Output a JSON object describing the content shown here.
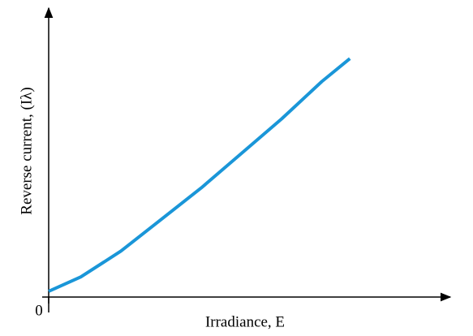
{
  "chart_data": {
    "type": "line",
    "x_label": "Irradiance, E",
    "y_label": "Reverse current, (Iλ)",
    "xlim": [
      0,
      100
    ],
    "ylim": [
      0,
      100
    ],
    "xticks": [
      0
    ],
    "series": [
      {
        "color": "#1a96d8",
        "x": [
          0,
          8,
          18,
          28,
          38,
          48,
          58,
          68,
          75
        ],
        "values": [
          2,
          7,
          16,
          27,
          38,
          50,
          62,
          75,
          83
        ]
      }
    ]
  }
}
